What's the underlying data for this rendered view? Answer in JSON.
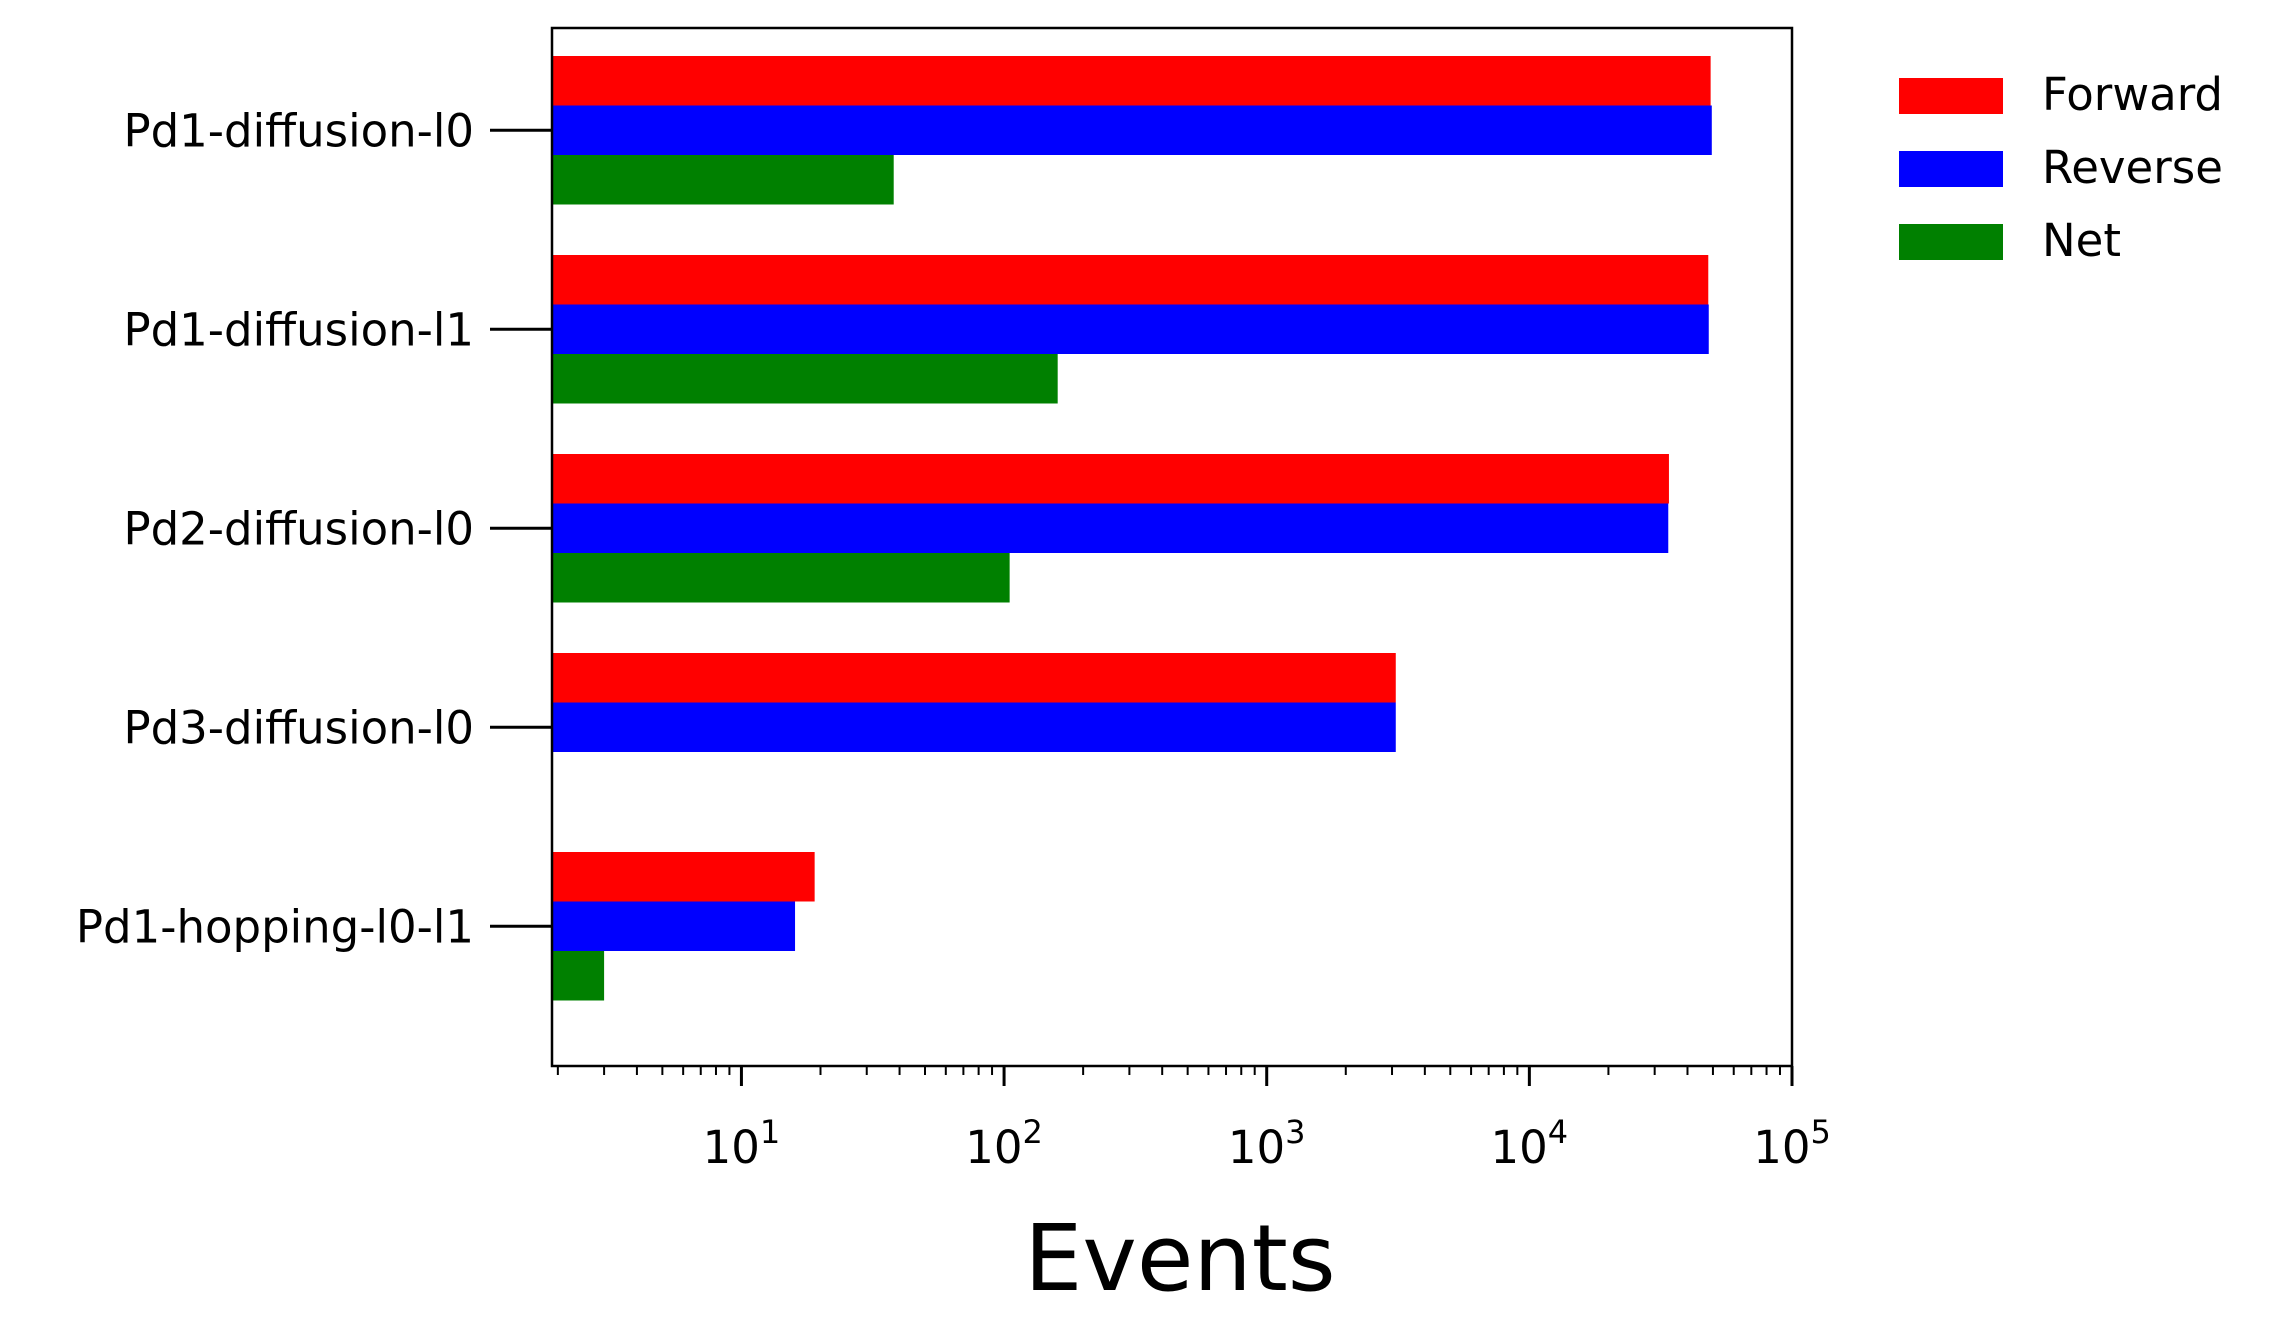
{
  "chart_data": {
    "type": "bar",
    "orientation": "horizontal",
    "title": "",
    "xlabel": "Events",
    "ylabel": "",
    "x_scale": "log",
    "xlim": [
      1.9,
      100000
    ],
    "x_ticks": [
      {
        "value": 10,
        "base": "10",
        "exp": "1"
      },
      {
        "value": 100,
        "base": "10",
        "exp": "2"
      },
      {
        "value": 1000,
        "base": "10",
        "exp": "3"
      },
      {
        "value": 10000,
        "base": "10",
        "exp": "4"
      },
      {
        "value": 100000,
        "base": "10",
        "exp": "5"
      }
    ],
    "grid": false,
    "legend_position": "outside-top-right",
    "categories": [
      "Pd1-diffusion-l0",
      "Pd1-diffusion-l1",
      "Pd2-diffusion-l0",
      "Pd3-diffusion-l0",
      "Pd1-hopping-l0-l1"
    ],
    "series": [
      {
        "name": "Forward",
        "color": "#ff0000",
        "values": [
          49000,
          48000,
          34000,
          3100,
          19
        ]
      },
      {
        "name": "Reverse",
        "color": "#0000ff",
        "values": [
          49500,
          48200,
          33800,
          3100,
          16
        ]
      },
      {
        "name": "Net",
        "color": "#008000",
        "values": [
          38,
          160,
          105,
          null,
          3
        ]
      }
    ]
  }
}
